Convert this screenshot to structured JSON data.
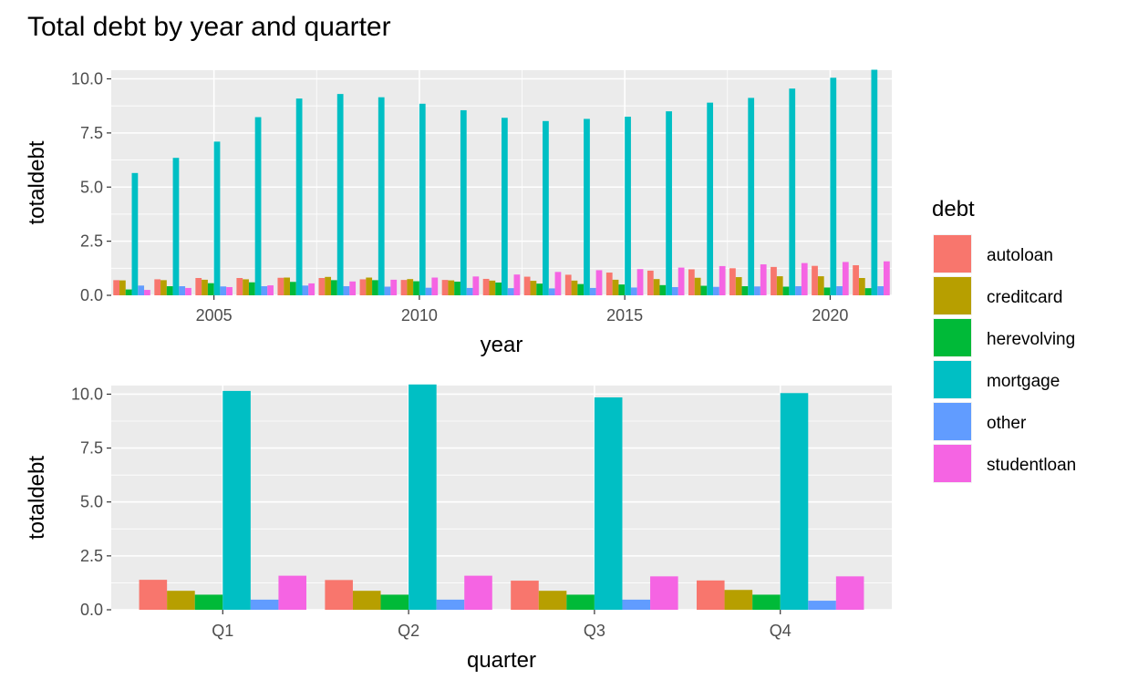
{
  "title": "Total debt by year and quarter",
  "legend": {
    "title": "debt",
    "position": "right",
    "items": [
      {
        "key": "autoloan",
        "label": "autoloan",
        "color": "#F8766D"
      },
      {
        "key": "creditcard",
        "label": "creditcard",
        "color": "#B79F00"
      },
      {
        "key": "herevolving",
        "label": "herevolving",
        "color": "#00BA38"
      },
      {
        "key": "mortgage",
        "label": "mortgage",
        "color": "#00BFC4"
      },
      {
        "key": "other",
        "label": "other",
        "color": "#619CFF"
      },
      {
        "key": "studentloan",
        "label": "studentloan",
        "color": "#F564E3"
      }
    ]
  },
  "chart_data": [
    {
      "type": "bar",
      "position": "dodge",
      "xlabel": "year",
      "ylabel": "totaldebt",
      "grid": true,
      "xlim": [
        2002.5,
        2021.5
      ],
      "ylim": [
        0,
        10.4
      ],
      "x_ticks": [
        2005,
        2010,
        2015,
        2020
      ],
      "y_ticks": [
        0,
        2.5,
        5,
        7.5,
        10
      ],
      "y_tick_labels": [
        "0.0",
        "2.5",
        "5.0",
        "7.5",
        "10.0"
      ],
      "categories": [
        2003,
        2004,
        2005,
        2006,
        2007,
        2008,
        2009,
        2010,
        2011,
        2012,
        2013,
        2014,
        2015,
        2016,
        2017,
        2018,
        2019,
        2020,
        2021
      ],
      "series": [
        {
          "name": "autoloan",
          "values": [
            0.7,
            0.74,
            0.8,
            0.8,
            0.81,
            0.8,
            0.74,
            0.71,
            0.71,
            0.76,
            0.86,
            0.95,
            1.05,
            1.14,
            1.2,
            1.25,
            1.31,
            1.36,
            1.39
          ]
        },
        {
          "name": "creditcard",
          "values": [
            0.69,
            0.7,
            0.72,
            0.74,
            0.82,
            0.85,
            0.82,
            0.75,
            0.69,
            0.68,
            0.67,
            0.68,
            0.72,
            0.75,
            0.81,
            0.84,
            0.88,
            0.88,
            0.8
          ]
        },
        {
          "name": "herevolving",
          "values": [
            0.27,
            0.42,
            0.56,
            0.6,
            0.62,
            0.7,
            0.7,
            0.65,
            0.63,
            0.59,
            0.54,
            0.52,
            0.5,
            0.47,
            0.44,
            0.42,
            0.4,
            0.36,
            0.33
          ]
        },
        {
          "name": "mortgage",
          "values": [
            5.65,
            6.35,
            7.1,
            8.23,
            9.09,
            9.3,
            9.15,
            8.85,
            8.55,
            8.2,
            8.05,
            8.15,
            8.25,
            8.5,
            8.9,
            9.12,
            9.55,
            10.05,
            10.42
          ]
        },
        {
          "name": "other",
          "values": [
            0.45,
            0.42,
            0.41,
            0.42,
            0.45,
            0.42,
            0.4,
            0.35,
            0.34,
            0.33,
            0.32,
            0.34,
            0.36,
            0.38,
            0.39,
            0.41,
            0.42,
            0.42,
            0.42
          ]
        },
        {
          "name": "studentloan",
          "values": [
            0.25,
            0.34,
            0.38,
            0.46,
            0.55,
            0.64,
            0.72,
            0.82,
            0.87,
            0.96,
            1.08,
            1.16,
            1.21,
            1.28,
            1.35,
            1.43,
            1.49,
            1.54,
            1.57
          ]
        }
      ]
    },
    {
      "type": "bar",
      "position": "dodge",
      "xlabel": "quarter",
      "ylabel": "totaldebt",
      "grid": true,
      "ylim": [
        0,
        10.4
      ],
      "y_ticks": [
        0,
        2.5,
        5,
        7.5,
        10
      ],
      "y_tick_labels": [
        "0.0",
        "2.5",
        "5.0",
        "7.5",
        "10.0"
      ],
      "categories": [
        "Q1",
        "Q2",
        "Q3",
        "Q4"
      ],
      "series": [
        {
          "name": "autoloan",
          "values": [
            1.39,
            1.38,
            1.35,
            1.36
          ]
        },
        {
          "name": "creditcard",
          "values": [
            0.88,
            0.88,
            0.88,
            0.92
          ]
        },
        {
          "name": "herevolving",
          "values": [
            0.7,
            0.7,
            0.7,
            0.7
          ]
        },
        {
          "name": "mortgage",
          "values": [
            10.15,
            10.45,
            9.85,
            10.05
          ]
        },
        {
          "name": "other",
          "values": [
            0.47,
            0.47,
            0.47,
            0.42
          ]
        },
        {
          "name": "studentloan",
          "values": [
            1.58,
            1.58,
            1.55,
            1.55
          ]
        }
      ]
    }
  ]
}
